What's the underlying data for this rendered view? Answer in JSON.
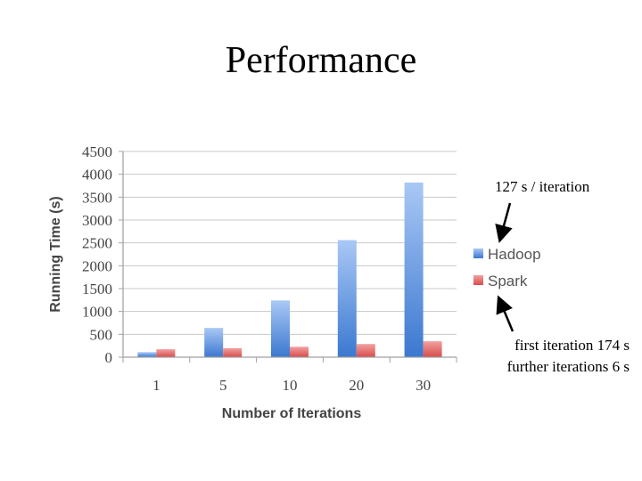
{
  "slide": {
    "title": "Performance"
  },
  "annotations": {
    "top": "127 s / iteration",
    "bottom_line1": "first iteration 174 s",
    "bottom_line2": "further iterations 6 s"
  },
  "colors": {
    "hadoop_top": "#a9c8f5",
    "hadoop_bottom": "#3b78d0",
    "spark_top": "#f2a0a0",
    "spark_bottom": "#d84c4c",
    "axis": "#a0a0a0",
    "grid": "#c8c8c8",
    "tick_text": "#444444"
  },
  "chart_data": {
    "type": "bar",
    "title": "",
    "xlabel": "Number of Iterations",
    "ylabel": "Running Time (s)",
    "categories": [
      "1",
      "5",
      "10",
      "20",
      "30"
    ],
    "ylim": [
      0,
      4500
    ],
    "yticks": [
      0,
      500,
      1000,
      1500,
      2000,
      2500,
      3000,
      3500,
      4000,
      4500
    ],
    "grid": true,
    "legend": "right",
    "series": [
      {
        "name": "Hadoop",
        "values": [
          110,
          640,
          1240,
          2560,
          3820
        ]
      },
      {
        "name": "Spark",
        "values": [
          174,
          198,
          228,
          288,
          348
        ]
      }
    ]
  }
}
